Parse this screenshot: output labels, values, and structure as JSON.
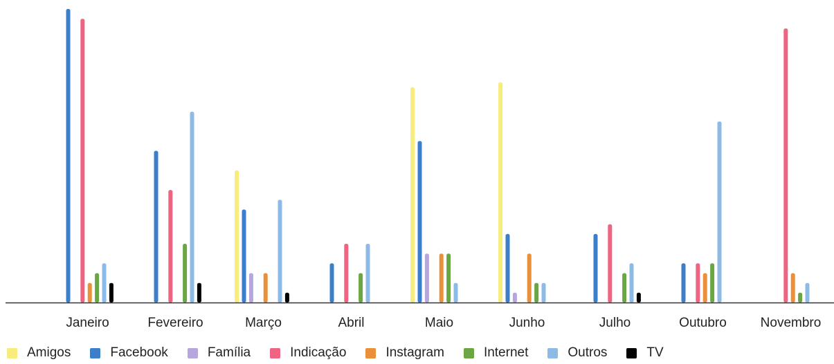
{
  "chart_data": {
    "type": "bar",
    "categories": [
      "Janeiro",
      "Fevereiro",
      "Março",
      "Abril",
      "Maio",
      "Junho",
      "Julho",
      "Outubro",
      "Novembro"
    ],
    "series": [
      {
        "name": "Amigos",
        "color": "#f7ec7c",
        "values": [
          0,
          0,
          27,
          0,
          44,
          45,
          0,
          0,
          0
        ]
      },
      {
        "name": "Facebook",
        "color": "#3b7fcb",
        "values": [
          60,
          31,
          19,
          8,
          33,
          14,
          14,
          8,
          0
        ]
      },
      {
        "name": "Família",
        "color": "#b6a6dd",
        "values": [
          0,
          0,
          6,
          0,
          10,
          2,
          0,
          0,
          0
        ]
      },
      {
        "name": "Indicação",
        "color": "#ef6581",
        "values": [
          58,
          23,
          0,
          12,
          0,
          0,
          16,
          8,
          56
        ]
      },
      {
        "name": "Instagram",
        "color": "#ea8f3a",
        "values": [
          4,
          0,
          6,
          0,
          10,
          10,
          0,
          6,
          6
        ]
      },
      {
        "name": "Internet",
        "color": "#6aa744",
        "values": [
          6,
          12,
          0,
          6,
          10,
          4,
          6,
          8,
          2
        ]
      },
      {
        "name": "Outros",
        "color": "#8ebbe6",
        "values": [
          8,
          39,
          21,
          12,
          4,
          4,
          8,
          37,
          4
        ]
      },
      {
        "name": "TV",
        "color": "#000000",
        "values": [
          4,
          4,
          2,
          0,
          0,
          0,
          2,
          0,
          0
        ]
      }
    ],
    "ylim": [
      0,
      60
    ],
    "grid": false,
    "legend_position": "bottom",
    "title": "",
    "xlabel": "",
    "ylabel": ""
  }
}
